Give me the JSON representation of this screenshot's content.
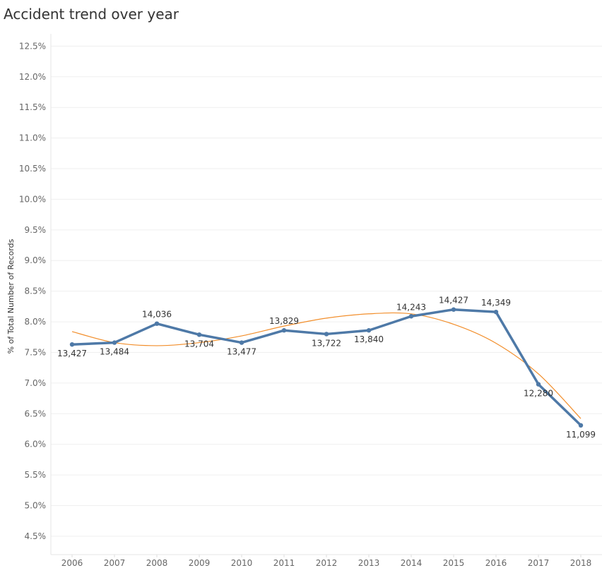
{
  "chart_data": {
    "type": "line",
    "title": "Accident trend over year",
    "xlabel": "",
    "ylabel": "% of Total Number of Records",
    "categories": [
      "2006",
      "2007",
      "2008",
      "2009",
      "2010",
      "2011",
      "2012",
      "2013",
      "2014",
      "2015",
      "2016",
      "2017",
      "2018"
    ],
    "y_ticks": [
      "4.5%",
      "5.0%",
      "5.5%",
      "6.0%",
      "6.5%",
      "7.0%",
      "7.5%",
      "8.0%",
      "8.5%",
      "9.0%",
      "9.5%",
      "10.0%",
      "10.5%",
      "11.0%",
      "11.5%",
      "12.0%",
      "12.5%"
    ],
    "ylim": [
      4.2,
      12.7
    ],
    "grid": true,
    "series": [
      {
        "values": [
          7.63,
          7.66,
          7.97,
          7.79,
          7.66,
          7.86,
          7.8,
          7.86,
          8.09,
          8.2,
          8.16,
          6.98,
          6.31
        ],
        "labels": [
          "13,427",
          "13,484",
          "14,036",
          "13,704",
          "13,477",
          "13,829",
          "13,722",
          "13,840",
          "14,243",
          "14,427",
          "14,349",
          "12,280",
          "11,099"
        ],
        "label_positions": [
          "below",
          "below",
          "above",
          "below",
          "below",
          "above",
          "below",
          "below",
          "above",
          "above",
          "above",
          "below",
          "below"
        ],
        "color": "#4e79a7"
      }
    ],
    "trend_line": {
      "type": "polynomial",
      "color": "#f28e2b",
      "values": [
        7.84,
        7.66,
        7.61,
        7.66,
        7.77,
        7.93,
        8.06,
        8.13,
        8.13,
        7.96,
        7.65,
        7.15,
        6.42
      ]
    }
  }
}
